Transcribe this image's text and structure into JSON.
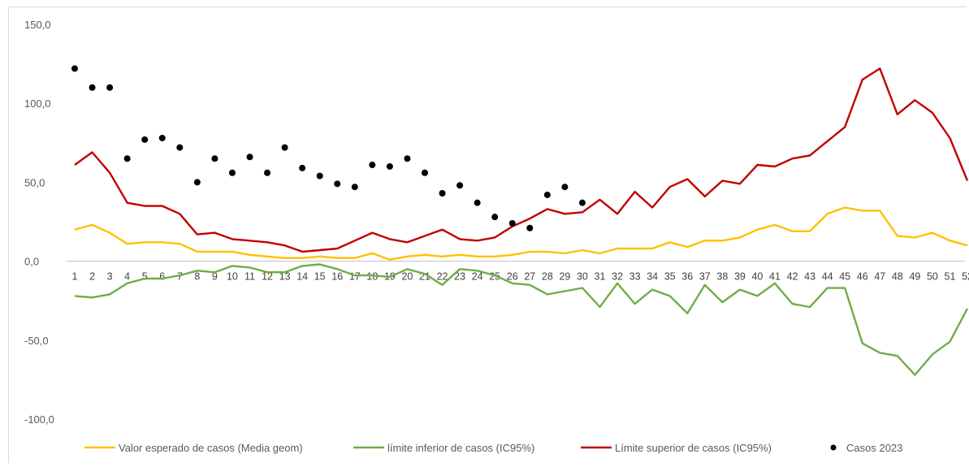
{
  "chart_data": {
    "type": "line",
    "title": "",
    "xlabel": "",
    "ylabel": "",
    "ylim": [
      -100,
      150
    ],
    "y_ticks": [
      "150,0",
      "100,0",
      "50,0",
      "0,0",
      "-50,0",
      "-100,0"
    ],
    "y_tick_values": [
      150,
      100,
      50,
      0,
      -50,
      -100
    ],
    "categories": [
      "1",
      "2",
      "3",
      "4",
      "5",
      "6",
      "7",
      "8",
      "9",
      "10",
      "11",
      "12",
      "13",
      "14",
      "15",
      "16",
      "17",
      "18",
      "19",
      "20",
      "21",
      "22",
      "23",
      "24",
      "25",
      "26",
      "27",
      "28",
      "29",
      "30",
      "31",
      "32",
      "33",
      "34",
      "35",
      "36",
      "37",
      "38",
      "39",
      "40",
      "41",
      "42",
      "43",
      "44",
      "45",
      "46",
      "47",
      "48",
      "49",
      "50",
      "51",
      "52"
    ],
    "grid": false,
    "legend_position": "bottom",
    "series": [
      {
        "name": "Valor esperado de casos (Media geom)",
        "kind": "line",
        "color": "#FFC000",
        "values": [
          20,
          23,
          18,
          11,
          12,
          12,
          11,
          6,
          6,
          6,
          4,
          3,
          2,
          2,
          3,
          2,
          2,
          5,
          1,
          3,
          4,
          3,
          4,
          3,
          3,
          4,
          6,
          6,
          5,
          7,
          5,
          8,
          8,
          8,
          12,
          9,
          13,
          13,
          15,
          20,
          23,
          19,
          19,
          30,
          34,
          32,
          32,
          16,
          15,
          18,
          13,
          10
        ]
      },
      {
        "name": "límite inferior de casos (IC95%)",
        "kind": "line",
        "color": "#70AD47",
        "values": [
          -22,
          -23,
          -21,
          -14,
          -11,
          -11,
          -9,
          -6,
          -7,
          -3,
          -4,
          -7,
          -7,
          -3,
          -2,
          -5,
          -9,
          -9,
          -10,
          -5,
          -8,
          -15,
          -5,
          -6,
          -9,
          -14,
          -15,
          -21,
          -19,
          -17,
          -29,
          -14,
          -27,
          -18,
          -22,
          -33,
          -15,
          -26,
          -18,
          -22,
          -14,
          -27,
          -29,
          -17,
          -17,
          -52,
          -58,
          -60,
          -72,
          -59,
          -51,
          -30
        ]
      },
      {
        "name": "Límite superior de casos (IC95%)",
        "kind": "line",
        "color": "#C00000",
        "values": [
          61,
          69,
          56,
          37,
          35,
          35,
          30,
          17,
          18,
          14,
          13,
          12,
          10,
          6,
          7,
          8,
          13,
          18,
          14,
          12,
          16,
          20,
          14,
          13,
          15,
          22,
          27,
          33,
          30,
          31,
          39,
          30,
          44,
          34,
          47,
          52,
          41,
          51,
          49,
          61,
          60,
          65,
          67,
          76,
          85,
          115,
          122,
          93,
          102,
          94,
          78,
          51
        ]
      },
      {
        "name": "Casos 2023",
        "kind": "scatter",
        "color": "#000000",
        "values": [
          122,
          110,
          110,
          65,
          77,
          78,
          72,
          50,
          65,
          56,
          66,
          56,
          72,
          59,
          54,
          49,
          47,
          61,
          60,
          65,
          56,
          43,
          48,
          37,
          28,
          24,
          21,
          42,
          47,
          37
        ]
      }
    ]
  }
}
